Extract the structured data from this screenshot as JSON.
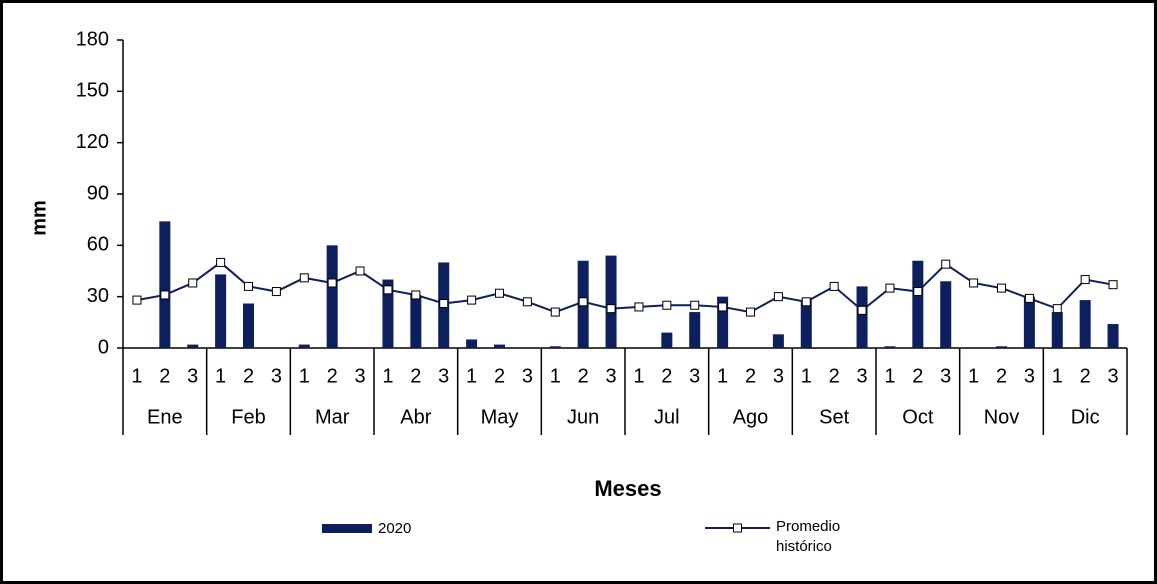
{
  "chart_data": {
    "type": "bar_line",
    "x_label": "Meses",
    "y_label": "mm",
    "categories": [
      "1",
      "2",
      "3",
      "1",
      "2",
      "3",
      "1",
      "2",
      "3",
      "1",
      "2",
      "3",
      "1",
      "2",
      "3",
      "1",
      "2",
      "3",
      "1",
      "2",
      "3",
      "1",
      "2",
      "3",
      "1",
      "2",
      "3",
      "1",
      "2",
      "3",
      "1",
      "2",
      "3",
      "1",
      "2",
      "3"
    ],
    "groups": [
      "Ene",
      "Feb",
      "Mar",
      "Abr",
      "May",
      "Jun",
      "Jul",
      "Ago",
      "Set",
      "Oct",
      "Nov",
      "Dic"
    ],
    "ylim": [
      0,
      180
    ],
    "yticks": [
      0,
      30,
      60,
      90,
      120,
      150,
      180
    ],
    "series": [
      {
        "name": "2020",
        "type": "bar",
        "color": "#0d1f5c",
        "values": [
          0,
          74,
          2,
          43,
          26,
          0,
          2,
          60,
          0,
          40,
          31,
          50,
          5,
          2,
          0,
          1,
          51,
          54,
          0,
          9,
          21,
          30,
          0,
          8,
          28,
          0,
          36,
          1,
          51,
          39,
          0,
          1,
          30,
          21,
          28,
          14
        ]
      },
      {
        "name": "Promedio histórico",
        "type": "line",
        "color": "#0d1f5c",
        "values": [
          28,
          31,
          38,
          50,
          36,
          33,
          41,
          38,
          45,
          34,
          31,
          26,
          28,
          32,
          27,
          21,
          27,
          23,
          24,
          25,
          25,
          24,
          21,
          30,
          27,
          36,
          22,
          35,
          33,
          49,
          38,
          35,
          29,
          23,
          40,
          37
        ]
      }
    ]
  }
}
